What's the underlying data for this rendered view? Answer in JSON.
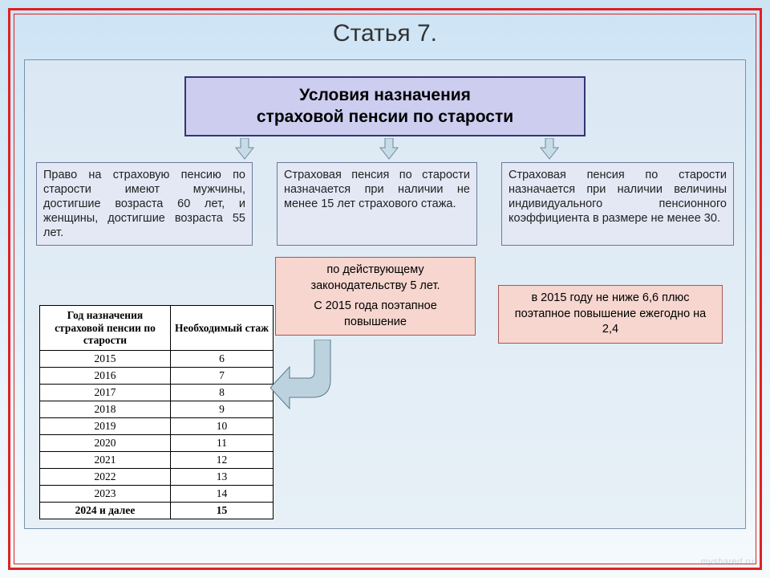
{
  "page": {
    "title": "Статья 7."
  },
  "heading": {
    "line1": "Условия назначения",
    "line2": "страховой пенсии по старости"
  },
  "conditions": {
    "left": "Право на страховую пенсию по старости имеют мужчины, достигшие возраста 60 лет, и женщины, достигшие возраста 55 лет.",
    "mid": "Страховая пенсия по старости назначается при наличии не менее 15 лет страхового стажа.",
    "right": "Страховая пенсия по старости назначается при наличии величины индивидуального пенсионного коэффициента в размере не менее 30."
  },
  "notes": {
    "mid_line1": "по действующему законодательству 5 лет.",
    "mid_line2": "С 2015 года поэтапное повышение",
    "right": "в 2015 году не ниже 6,6 плюс поэтапное повышение ежегодно на 2,4"
  },
  "table": {
    "col1_header": "Год назначения страховой пенсии по старости",
    "col2_header": "Необходимый стаж",
    "rows": [
      {
        "year": "2015",
        "stazh": "6"
      },
      {
        "year": "2016",
        "stazh": "7"
      },
      {
        "year": "2017",
        "stazh": "8"
      },
      {
        "year": "2018",
        "stazh": "9"
      },
      {
        "year": "2019",
        "stazh": "10"
      },
      {
        "year": "2020",
        "stazh": "11"
      },
      {
        "year": "2021",
        "stazh": "12"
      },
      {
        "year": "2022",
        "stazh": "13"
      },
      {
        "year": "2023",
        "stazh": "14"
      },
      {
        "year": "2024 и далее",
        "stazh": "15"
      }
    ],
    "col1_width_pct": 56,
    "col2_width_pct": 44
  },
  "colors": {
    "frame": "#d22",
    "heading_bg": "#cdcdf0",
    "heading_border": "#353570",
    "cond_bg": "#e4e8f5",
    "cond_border": "#6a7a9a",
    "note_bg": "#f6d6cf",
    "note_border": "#a55",
    "arrow_fill": "#bcd3df",
    "arrow_stroke": "#5a7a8a",
    "small_arrow_fill": "#c7dce7",
    "small_arrow_stroke": "#6a8a9a"
  },
  "small_arrows": {
    "positions_x": [
      260,
      440,
      640
    ]
  },
  "watermark": "myshared.ru"
}
